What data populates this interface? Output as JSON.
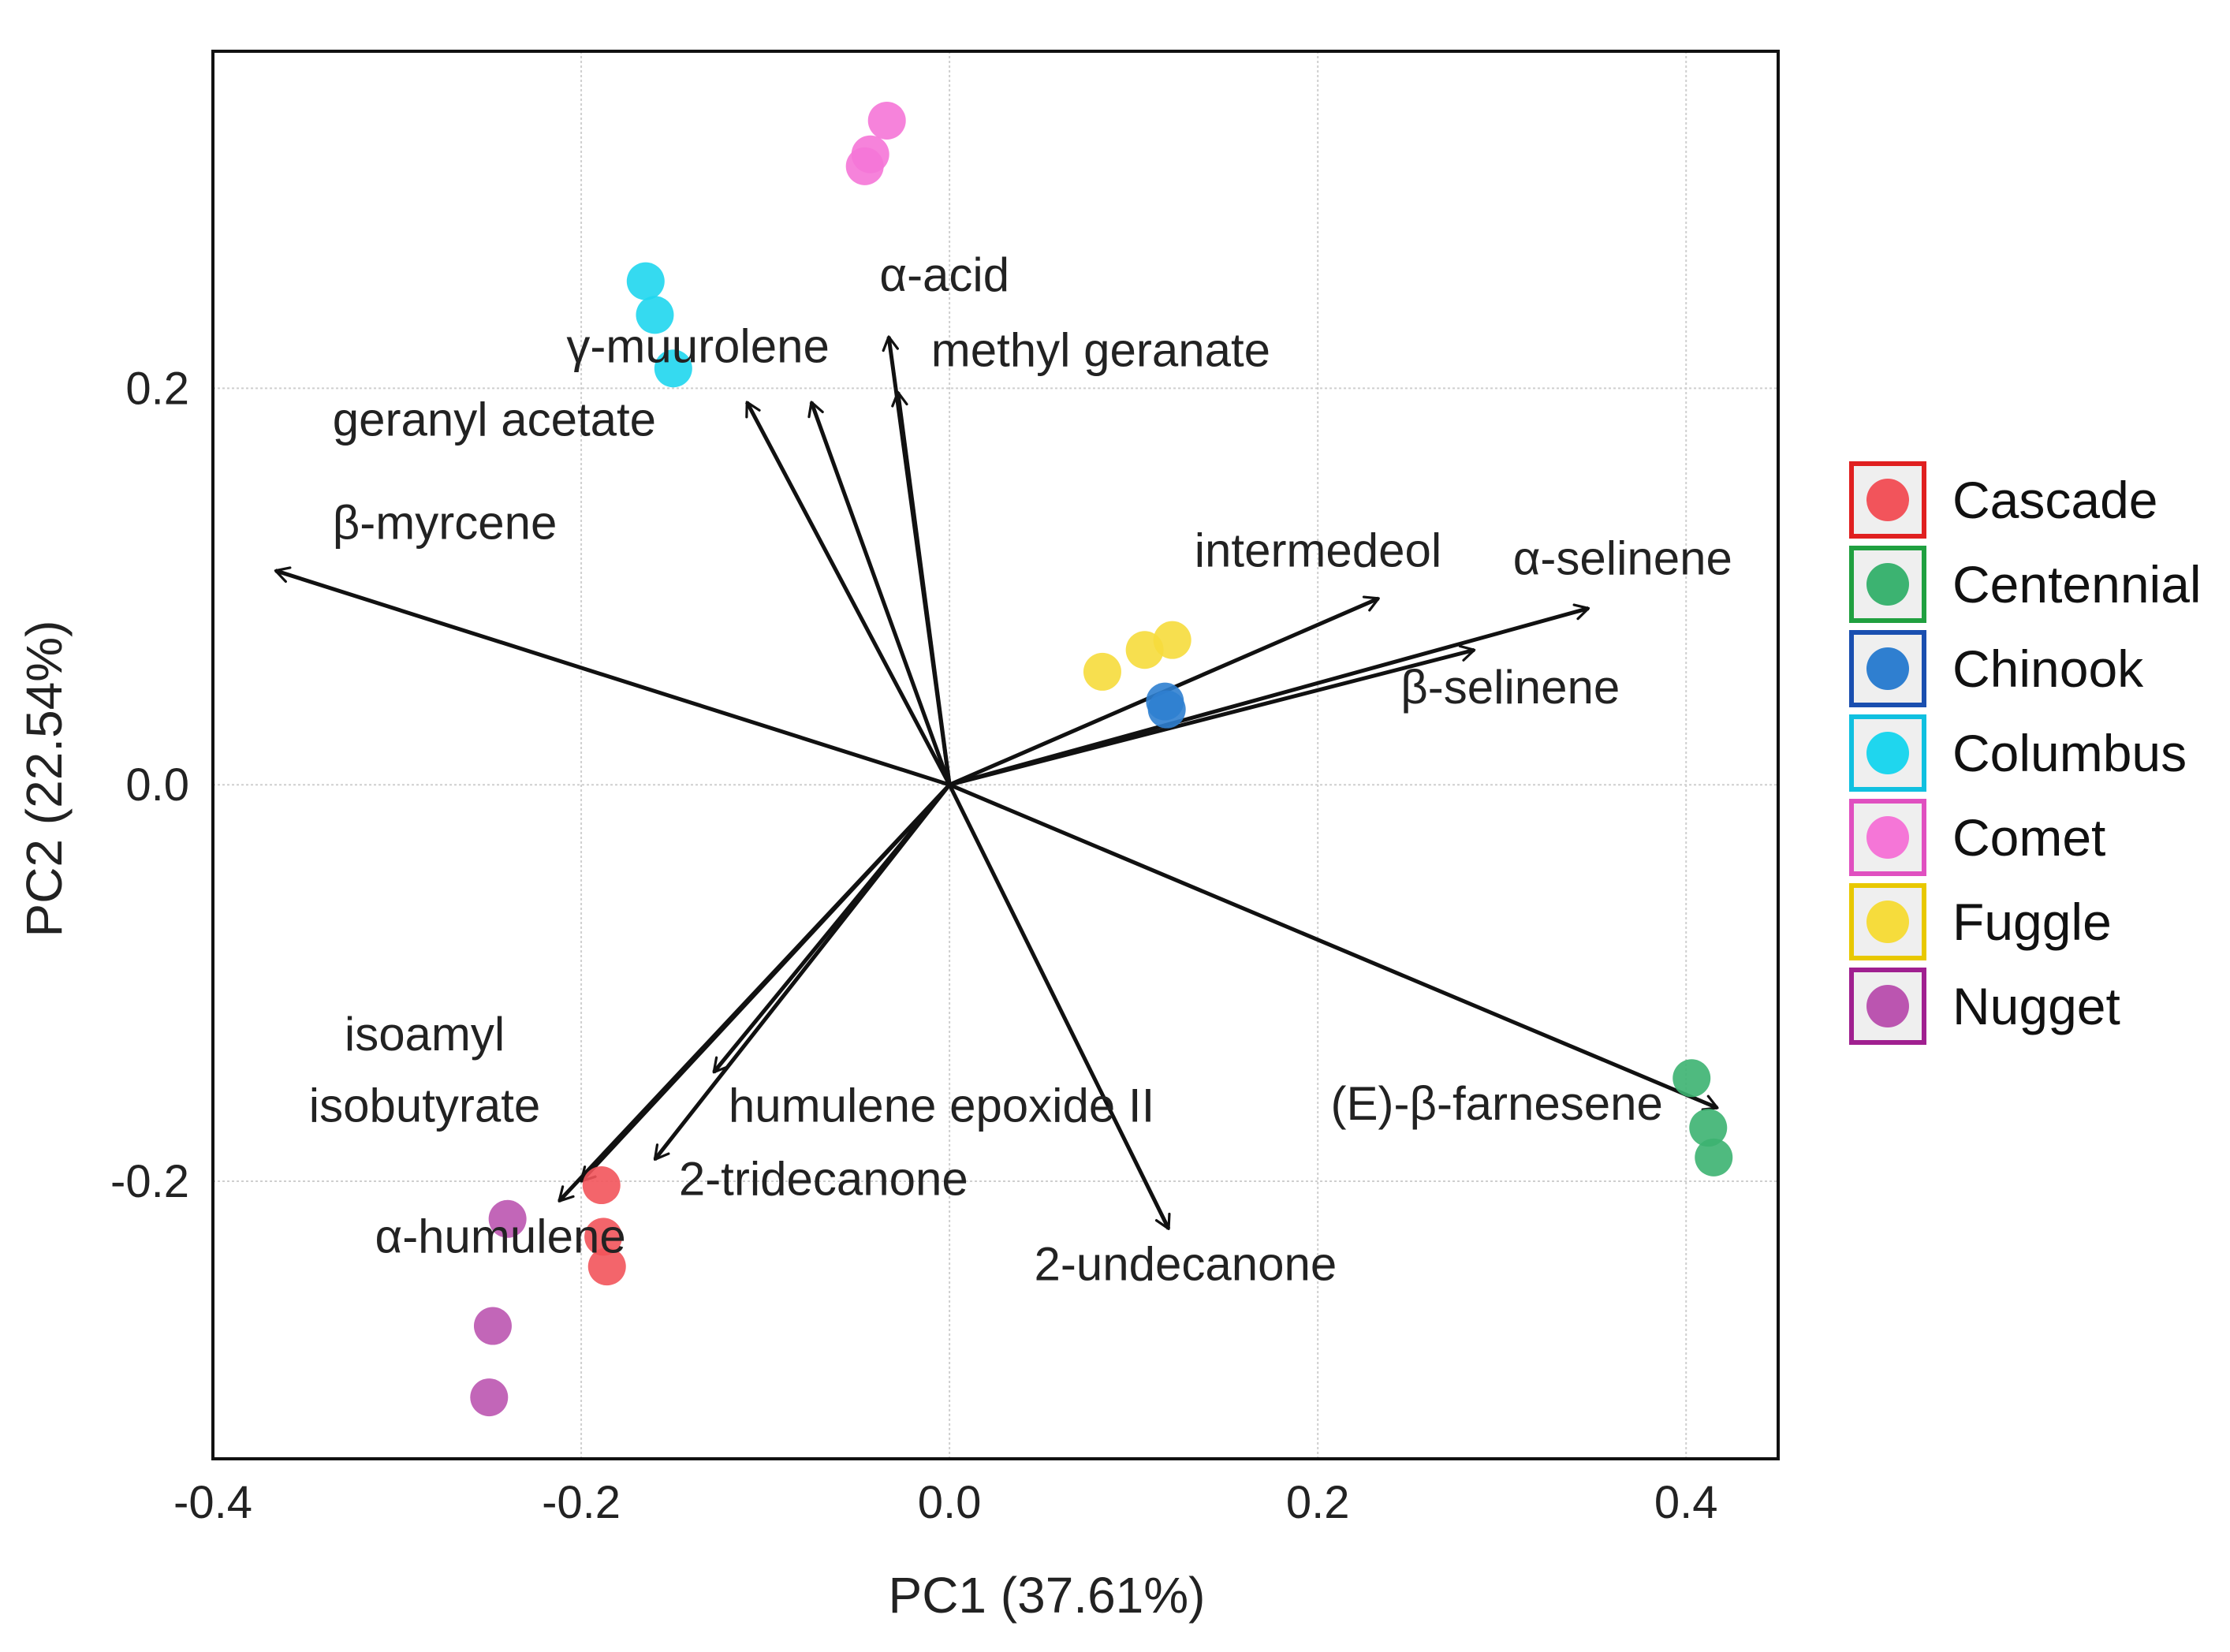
{
  "chart_data": {
    "type": "scatter",
    "subtype": "pca-biplot",
    "title": "",
    "xlabel": "PC1 (37.61%)",
    "ylabel": "PC2 (22.54%)",
    "xlim": [
      -0.4,
      0.45
    ],
    "ylim": [
      -0.34,
      0.37
    ],
    "x_ticks": [
      -0.4,
      -0.2,
      0.0,
      0.2,
      0.4
    ],
    "x_tick_labels": [
      "-0.4",
      "-0.2",
      "0.0",
      "0.2",
      "0.4"
    ],
    "y_ticks": [
      -0.2,
      0.0,
      0.2
    ],
    "y_tick_labels": [
      "-0.2",
      "0.0",
      "0.2"
    ],
    "grid": true,
    "legend_position": "right",
    "series": [
      {
        "name": "Cascade",
        "color": "#f2545b",
        "border": "#e02020",
        "points": [
          {
            "x": -0.189,
            "y": -0.202
          },
          {
            "x": -0.188,
            "y": -0.228
          },
          {
            "x": -0.186,
            "y": -0.243
          }
        ]
      },
      {
        "name": "Centennial",
        "color": "#3cb371",
        "border": "#20a040",
        "points": [
          {
            "x": 0.403,
            "y": -0.148
          },
          {
            "x": 0.412,
            "y": -0.173
          },
          {
            "x": 0.415,
            "y": -0.188
          }
        ]
      },
      {
        "name": "Chinook",
        "color": "#2f7fd0",
        "border": "#1a4fb0",
        "points": [
          {
            "x": 0.117,
            "y": 0.042
          },
          {
            "x": 0.118,
            "y": 0.038
          }
        ]
      },
      {
        "name": "Columbus",
        "color": "#1fd6ee",
        "border": "#10c0e0",
        "points": [
          {
            "x": -0.165,
            "y": 0.254
          },
          {
            "x": -0.16,
            "y": 0.237
          },
          {
            "x": -0.15,
            "y": 0.21
          }
        ]
      },
      {
        "name": "Comet",
        "color": "#f576d7",
        "border": "#e050c0",
        "points": [
          {
            "x": -0.034,
            "y": 0.335
          },
          {
            "x": -0.043,
            "y": 0.318
          },
          {
            "x": -0.046,
            "y": 0.312
          }
        ]
      },
      {
        "name": "Fuggle",
        "color": "#f6dc3c",
        "border": "#e8c800",
        "points": [
          {
            "x": 0.083,
            "y": 0.057
          },
          {
            "x": 0.106,
            "y": 0.068
          },
          {
            "x": 0.121,
            "y": 0.073
          }
        ]
      },
      {
        "name": "Nugget",
        "color": "#bb55b0",
        "border": "#a02090",
        "points": [
          {
            "x": -0.24,
            "y": -0.219
          },
          {
            "x": -0.248,
            "y": -0.273
          },
          {
            "x": -0.25,
            "y": -0.309
          }
        ]
      }
    ],
    "loadings": [
      {
        "label": "β-myrcene",
        "x": -0.366,
        "y": 0.108
      },
      {
        "label": "geranyl acetate",
        "x": -0.11,
        "y": 0.193
      },
      {
        "label": "γ-muurolene",
        "x": -0.075,
        "y": 0.193
      },
      {
        "label": "α-acid",
        "x": -0.033,
        "y": 0.226
      },
      {
        "label": "methyl geranate",
        "x": -0.028,
        "y": 0.198
      },
      {
        "label": "intermedeol",
        "x": 0.233,
        "y": 0.094
      },
      {
        "label": "α-selinene",
        "x": 0.347,
        "y": 0.089
      },
      {
        "label": "β-selinene",
        "x": 0.285,
        "y": 0.068
      },
      {
        "label": "(E)-β-farnesene",
        "x": 0.417,
        "y": -0.163
      },
      {
        "label": "2-undecanone",
        "x": 0.119,
        "y": -0.224
      },
      {
        "label": "humulene epoxide II",
        "x": -0.128,
        "y": -0.145
      },
      {
        "label": "2-tridecanone",
        "x": -0.16,
        "y": -0.189
      },
      {
        "label": "α-humulene",
        "x": -0.212,
        "y": -0.21
      },
      {
        "label": "isoamyl isobutyrate",
        "x": -0.2,
        "y": -0.2
      }
    ],
    "loading_labels": [
      {
        "text": "β-myrcene",
        "x": -0.335,
        "y": 0.124,
        "anchor": "start"
      },
      {
        "text": "geranyl acetate",
        "x": -0.335,
        "y": 0.176,
        "anchor": "start"
      },
      {
        "text": "γ-muurolene",
        "x": -0.208,
        "y": 0.213,
        "anchor": "start"
      },
      {
        "text": "α-acid",
        "x": -0.038,
        "y": 0.249,
        "anchor": "start"
      },
      {
        "text": "methyl geranate",
        "x": -0.01,
        "y": 0.211,
        "anchor": "start"
      },
      {
        "text": "intermedeol",
        "x": 0.133,
        "y": 0.11,
        "anchor": "start"
      },
      {
        "text": "α-selinene",
        "x": 0.306,
        "y": 0.106,
        "anchor": "start"
      },
      {
        "text": "β-selinene",
        "x": 0.245,
        "y": 0.041,
        "anchor": "start"
      },
      {
        "text": "(E)-β-farnesene",
        "x": 0.207,
        "y": -0.169,
        "anchor": "start"
      },
      {
        "text": "2-undecanone",
        "x": 0.046,
        "y": -0.25,
        "anchor": "start"
      },
      {
        "text": "humulene epoxide II",
        "x": -0.12,
        "y": -0.17,
        "anchor": "start"
      },
      {
        "text": "2-tridecanone",
        "x": -0.147,
        "y": -0.207,
        "anchor": "start"
      },
      {
        "text": "α-humulene",
        "x": -0.312,
        "y": -0.236,
        "anchor": "start"
      },
      {
        "text": "isoamyl",
        "x": -0.285,
        "y": -0.134,
        "anchor": "middle"
      },
      {
        "text": "isobutyrate",
        "x": -0.285,
        "y": -0.17,
        "anchor": "middle"
      }
    ]
  }
}
